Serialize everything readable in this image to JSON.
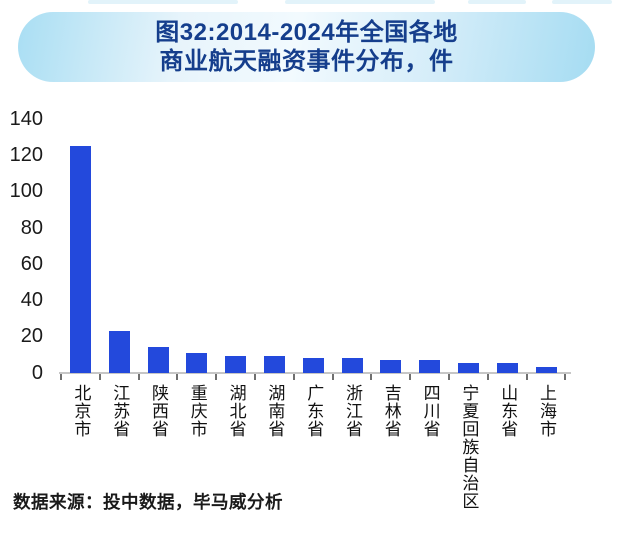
{
  "title": {
    "line1": "图32:2014-2024年全国各地",
    "line2": "商业航天融资事件分布，件"
  },
  "source_note": "数据来源：投中数据，毕马威分析",
  "colors": {
    "bar": "#2349dc",
    "title_text": "#153e8c",
    "pill_edge": "#a6ddf3",
    "pill_center": "#f2fafe",
    "axis_line": "#c6c6c6",
    "tick": "#6f6f6f",
    "axis_text": "#1a1a1a"
  },
  "chart_data": {
    "type": "bar",
    "title": "图32:2014-2024年全国各地商业航天融资事件分布，件",
    "unit": "件",
    "categories": [
      "北京市",
      "江苏省",
      "陕西省",
      "重庆市",
      "湖北省",
      "湖南省",
      "广东省",
      "浙江省",
      "吉林省",
      "四川省",
      "宁夏回族自治区",
      "山东省",
      "上海市"
    ],
    "values": [
      125,
      23,
      14,
      11,
      9,
      9,
      8,
      8,
      7,
      7,
      5,
      5,
      3
    ],
    "xlabel": "",
    "ylabel": "",
    "ylim": [
      0,
      140
    ],
    "yticks": [
      0,
      20,
      40,
      60,
      80,
      100,
      120,
      140
    ],
    "grid": false,
    "legend": false
  }
}
